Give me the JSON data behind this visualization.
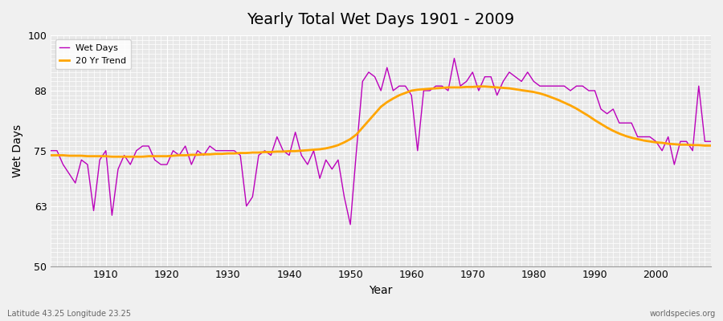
{
  "title": "Yearly Total Wet Days 1901 - 2009",
  "xlabel": "Year",
  "ylabel": "Wet Days",
  "footnote_left": "Latitude 43.25 Longitude 23.25",
  "footnote_right": "worldspecies.org",
  "ylim": [
    50,
    100
  ],
  "yticks": [
    50,
    63,
    75,
    88,
    100
  ],
  "xlim": [
    1901,
    2009
  ],
  "xticks": [
    1910,
    1920,
    1930,
    1940,
    1950,
    1960,
    1970,
    1980,
    1990,
    2000
  ],
  "wet_days_color": "#bb00bb",
  "trend_color": "#ffa500",
  "bg_color": "#f0f0f0",
  "plot_bg_color": "#e8e8e8",
  "legend_wet": "Wet Days",
  "legend_trend": "20 Yr Trend",
  "years": [
    1901,
    1902,
    1903,
    1904,
    1905,
    1906,
    1907,
    1908,
    1909,
    1910,
    1911,
    1912,
    1913,
    1914,
    1915,
    1916,
    1917,
    1918,
    1919,
    1920,
    1921,
    1922,
    1923,
    1924,
    1925,
    1926,
    1927,
    1928,
    1929,
    1930,
    1931,
    1932,
    1933,
    1934,
    1935,
    1936,
    1937,
    1938,
    1939,
    1940,
    1941,
    1942,
    1943,
    1944,
    1945,
    1946,
    1947,
    1948,
    1949,
    1950,
    1951,
    1952,
    1953,
    1954,
    1955,
    1956,
    1957,
    1958,
    1959,
    1960,
    1961,
    1962,
    1963,
    1964,
    1965,
    1966,
    1967,
    1968,
    1969,
    1970,
    1971,
    1972,
    1973,
    1974,
    1975,
    1976,
    1977,
    1978,
    1979,
    1980,
    1981,
    1982,
    1983,
    1984,
    1985,
    1986,
    1987,
    1988,
    1989,
    1990,
    1991,
    1992,
    1993,
    1994,
    1995,
    1996,
    1997,
    1998,
    1999,
    2000,
    2001,
    2002,
    2003,
    2004,
    2005,
    2006,
    2007,
    2008,
    2009
  ],
  "wet_days": [
    75,
    75,
    72,
    70,
    68,
    73,
    72,
    62,
    73,
    75,
    61,
    71,
    74,
    72,
    75,
    76,
    76,
    73,
    72,
    72,
    75,
    74,
    76,
    72,
    75,
    74,
    76,
    75,
    75,
    75,
    75,
    74,
    63,
    65,
    74,
    75,
    74,
    78,
    75,
    74,
    79,
    74,
    72,
    75,
    69,
    73,
    71,
    73,
    65,
    59,
    75,
    90,
    92,
    91,
    88,
    93,
    88,
    89,
    89,
    87,
    75,
    88,
    88,
    89,
    89,
    88,
    95,
    89,
    90,
    92,
    88,
    91,
    91,
    87,
    90,
    92,
    91,
    90,
    92,
    90,
    89,
    89,
    89,
    89,
    89,
    88,
    89,
    89,
    88,
    88,
    84,
    83,
    84,
    81,
    81,
    81,
    78,
    78,
    78,
    77,
    75,
    78,
    72,
    77,
    77,
    75,
    89,
    77,
    77
  ],
  "trend": [
    74.0,
    74.0,
    74.0,
    73.9,
    73.9,
    73.9,
    73.8,
    73.8,
    73.8,
    73.8,
    73.7,
    73.7,
    73.7,
    73.7,
    73.7,
    73.7,
    73.8,
    73.8,
    73.8,
    73.8,
    73.9,
    74.0,
    74.0,
    74.1,
    74.1,
    74.2,
    74.2,
    74.3,
    74.3,
    74.4,
    74.4,
    74.5,
    74.5,
    74.6,
    74.6,
    74.7,
    74.7,
    74.8,
    74.8,
    74.9,
    74.9,
    75.0,
    75.1,
    75.2,
    75.3,
    75.5,
    75.8,
    76.2,
    76.8,
    77.5,
    78.5,
    80.0,
    81.5,
    83.0,
    84.5,
    85.5,
    86.3,
    87.0,
    87.5,
    88.0,
    88.2,
    88.3,
    88.4,
    88.5,
    88.6,
    88.7,
    88.7,
    88.7,
    88.8,
    88.8,
    88.9,
    88.9,
    88.8,
    88.7,
    88.6,
    88.5,
    88.3,
    88.1,
    87.9,
    87.7,
    87.4,
    87.0,
    86.5,
    86.0,
    85.4,
    84.8,
    84.1,
    83.3,
    82.5,
    81.6,
    80.8,
    80.0,
    79.3,
    78.7,
    78.2,
    77.8,
    77.5,
    77.2,
    77.0,
    76.8,
    76.7,
    76.5,
    76.4,
    76.3,
    76.3,
    76.2,
    76.2,
    76.1,
    76.1
  ]
}
